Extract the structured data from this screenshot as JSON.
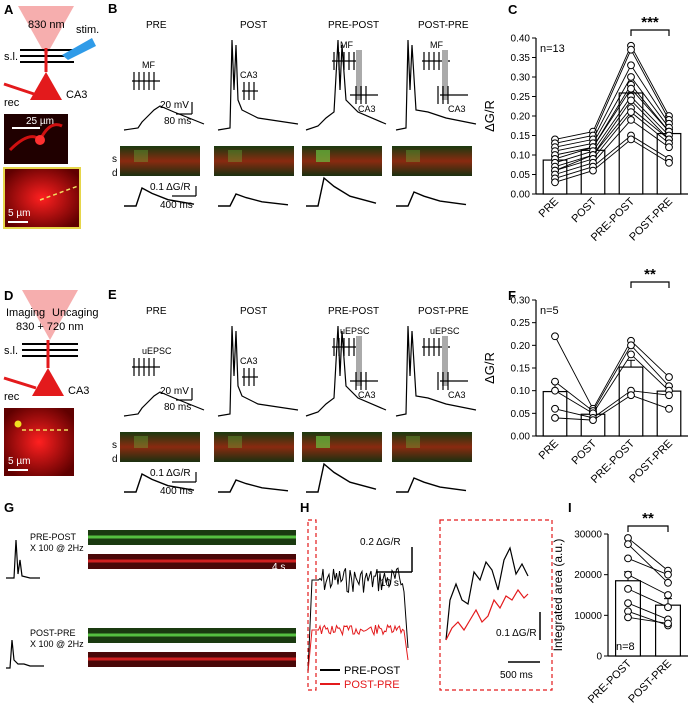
{
  "panels": {
    "A": {
      "letter": "A",
      "laser": "830 nm",
      "stim": "stim.",
      "sl": "s.l.",
      "rec": "rec",
      "ca3": "CA3",
      "scale1": "25 µm",
      "scale2": "5 µm"
    },
    "B": {
      "letter": "B",
      "conditions": [
        "PRE",
        "POST",
        "PRE-POST",
        "POST-PRE"
      ],
      "mf": "MF",
      "ca3": "CA3",
      "mv": "20 mV",
      "ms": "80 ms",
      "s": "s",
      "d": "d",
      "dg": "0.1 ΔG/R",
      "ms2": "400 ms"
    },
    "C": {
      "letter": "C",
      "n": "n=13",
      "sig": "***",
      "ylabel": "ΔG/R"
    },
    "D": {
      "letter": "D",
      "imaging": "Imaging",
      "uncaging": "Uncaging",
      "laser": "830 + 720 nm",
      "sl": "s.l.",
      "rec": "rec",
      "ca3": "CA3",
      "scale": "5 µm"
    },
    "E": {
      "letter": "E",
      "conditions": [
        "PRE",
        "POST",
        "PRE-POST",
        "POST-PRE"
      ],
      "uepsc": "uEPSC",
      "ca3": "CA3",
      "mv": "20 mV",
      "ms": "80 ms",
      "s": "s",
      "d": "d",
      "dg": "0.1 ΔG/R",
      "ms2": "400 ms"
    },
    "F": {
      "letter": "F",
      "n": "n=5",
      "sig": "**",
      "ylabel": "ΔG/R"
    },
    "G": {
      "letter": "G",
      "prepost": "PRE-POST",
      "prepost_rep": "X 100 @ 2Hz",
      "postpre": "POST-PRE",
      "postpre_rep": "X 100 @ 2Hz",
      "scale": "4 s"
    },
    "H": {
      "letter": "H",
      "dg": "0.2 ΔG/R",
      "s": "10 s",
      "legend": [
        "PRE-POST",
        "POST-PRE"
      ],
      "inset_dg": "0.1 ΔG/R",
      "inset_ms": "500 ms"
    },
    "I": {
      "letter": "I",
      "n": "n=8",
      "sig": "**",
      "ylabel": "Integrated area (a.u.)"
    }
  },
  "colors": {
    "black": "#000000",
    "red": "#e31a1c",
    "green": "#3fae3f",
    "linescan_red": "#b01010",
    "sig": "#000000"
  },
  "chart_data": [
    {
      "type": "bar",
      "panel": "C",
      "categories": [
        "PRE",
        "POST",
        "PRE-POST",
        "POST-PRE"
      ],
      "values": [
        0.087,
        0.112,
        0.259,
        0.155
      ],
      "errors": [
        0.01,
        0.01,
        0.02,
        0.01
      ],
      "ylim": [
        0,
        0.4
      ],
      "yticks": [
        0.0,
        0.05,
        0.1,
        0.15,
        0.2,
        0.25,
        0.3,
        0.35,
        0.4
      ],
      "ylabel": "ΔG/R",
      "paired": [
        [
          0.14,
          0.16,
          0.38,
          0.2
        ],
        [
          0.13,
          0.15,
          0.37,
          0.19
        ],
        [
          0.12,
          0.14,
          0.33,
          0.18
        ],
        [
          0.11,
          0.13,
          0.3,
          0.17
        ],
        [
          0.1,
          0.12,
          0.28,
          0.16
        ],
        [
          0.09,
          0.12,
          0.27,
          0.16
        ],
        [
          0.08,
          0.11,
          0.25,
          0.15
        ],
        [
          0.07,
          0.1,
          0.24,
          0.14
        ],
        [
          0.06,
          0.1,
          0.22,
          0.14
        ],
        [
          0.06,
          0.09,
          0.21,
          0.13
        ],
        [
          0.05,
          0.08,
          0.19,
          0.12
        ],
        [
          0.04,
          0.07,
          0.15,
          0.09
        ],
        [
          0.03,
          0.06,
          0.14,
          0.08
        ]
      ]
    },
    {
      "type": "bar",
      "panel": "F",
      "categories": [
        "PRE",
        "POST",
        "PRE-POST",
        "POST-PRE"
      ],
      "values": [
        0.098,
        0.048,
        0.152,
        0.099
      ],
      "errors": [
        0.02,
        0.005,
        0.015,
        0.01
      ],
      "ylim": [
        0,
        0.3
      ],
      "yticks": [
        0.0,
        0.05,
        0.1,
        0.15,
        0.2,
        0.25,
        0.3
      ],
      "ylabel": "ΔG/R",
      "paired": [
        [
          0.22,
          0.06,
          0.21,
          0.13
        ],
        [
          0.12,
          0.055,
          0.2,
          0.11
        ],
        [
          0.1,
          0.05,
          0.18,
          0.1
        ],
        [
          0.06,
          0.04,
          0.1,
          0.09
        ],
        [
          0.04,
          0.035,
          0.09,
          0.06
        ]
      ]
    },
    {
      "type": "bar",
      "panel": "I",
      "categories": [
        "PRE-POST",
        "POST-PRE"
      ],
      "values": [
        18500,
        12500
      ],
      "errors": [
        2200,
        1600
      ],
      "ylim": [
        0,
        30000
      ],
      "yticks": [
        0,
        10000,
        20000,
        30000
      ],
      "ylabel": "Integrated area (a.u.)",
      "paired": [
        [
          29000,
          21000
        ],
        [
          27500,
          18000
        ],
        [
          24000,
          20000
        ],
        [
          20000,
          15000
        ],
        [
          16500,
          12000
        ],
        [
          13000,
          9000
        ],
        [
          11000,
          7500
        ],
        [
          9500,
          8000
        ]
      ]
    }
  ]
}
